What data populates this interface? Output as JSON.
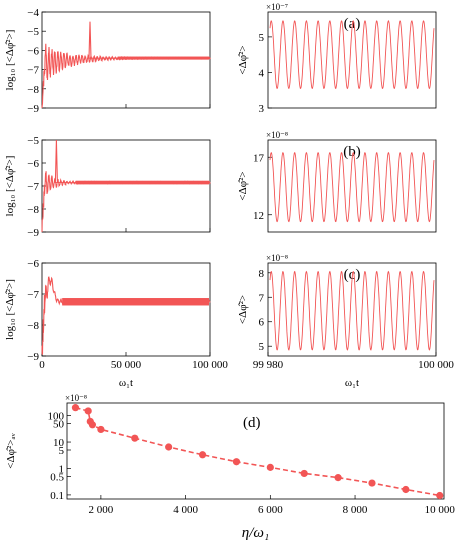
{
  "figure": {
    "panel_labels": [
      "(a)",
      "(b)",
      "(c)",
      "(d)"
    ],
    "left_xlabel": "ω₁t",
    "right_xlabel": "ω₁t",
    "left_ylabel": "log₁₀ [<Δφ̂²>]",
    "right_ylabel": "<Δφ̂²>",
    "d_ylabel": "<Δφ̂²>ₐᵥ",
    "d_xlabel": "η/ω₁",
    "series_color": "#f25555"
  },
  "chart_data": [
    {
      "type": "line",
      "panel": "a-left",
      "xlim": [
        0,
        100000
      ],
      "ylim": [
        -9,
        -4
      ],
      "yticks": [
        -9,
        -8,
        -7,
        -6,
        -5,
        -4
      ],
      "xticks": [
        0,
        50000,
        100000
      ],
      "xtick_labels": [
        "0",
        "50 000",
        "100 000"
      ],
      "ylabel": "log₁₀ [<Δφ̂²>]",
      "description_values": {
        "steady_level": -6.4,
        "initial_min": -9,
        "spike_max": -4.5,
        "spike_x": 28000,
        "ringdown_end_x": 45000
      }
    },
    {
      "type": "line",
      "panel": "a-right",
      "label": "(a)",
      "xlim": [
        99980,
        100000
      ],
      "ylim": [
        3,
        5.7
      ],
      "yticks": [
        3,
        4,
        5
      ],
      "multiplier": "×10⁻⁷",
      "oscillation": {
        "center": 4.5,
        "amplitude": 0.95,
        "cycles": 14
      }
    },
    {
      "type": "line",
      "panel": "b-left",
      "xlim": [
        0,
        100000
      ],
      "ylim": [
        -9,
        -5
      ],
      "yticks": [
        -9,
        -8,
        -7,
        -6,
        -5
      ],
      "xticks": [
        0,
        50000,
        100000
      ],
      "xtick_labels": [
        "0",
        "50 000",
        "100 000"
      ],
      "ylabel": "log₁₀ [<Δφ̂²>]",
      "description_values": {
        "steady_level": -6.85,
        "initial_min": -9,
        "spike_max": -5,
        "spike_x": 8000
      }
    },
    {
      "type": "line",
      "panel": "b-right",
      "label": "(b)",
      "xlim": [
        99980,
        100000
      ],
      "ylim": [
        10.5,
        18.5
      ],
      "yticks": [
        12,
        17
      ],
      "multiplier": "×10⁻⁸",
      "oscillation": {
        "center": 14.4,
        "amplitude": 3.0,
        "cycles": 14
      }
    },
    {
      "type": "line",
      "panel": "c-left",
      "xlim": [
        0,
        100000
      ],
      "ylim": [
        -9,
        -6
      ],
      "yticks": [
        -9,
        -8,
        -7,
        -6
      ],
      "xticks": [
        0,
        50000,
        100000
      ],
      "xtick_labels": [
        "0",
        "50 000",
        "100 000"
      ],
      "xlabel": "ω₁t",
      "ylabel": "log₁₀ [<Δφ̂²>]",
      "description_values": {
        "steady_level": -7.25,
        "initial_min": -9,
        "overshoot_max": -6.55,
        "overshoot_x": 5000
      }
    },
    {
      "type": "line",
      "panel": "c-right",
      "label": "(c)",
      "xlim": [
        99980,
        100000
      ],
      "ylim": [
        4.6,
        8.4
      ],
      "yticks": [
        5,
        6,
        7,
        8
      ],
      "multiplier": "×10⁻⁸",
      "xticks": [
        99980,
        100000
      ],
      "xtick_labels": [
        "99 980",
        "100 000"
      ],
      "xlabel": "ω₁t",
      "oscillation": {
        "center": 6.45,
        "amplitude": 1.6,
        "cycles": 14
      }
    },
    {
      "type": "scatter",
      "panel": "d",
      "label": "(d)",
      "log_y": true,
      "xlim": [
        1200,
        10100
      ],
      "ylim": [
        0.07,
        300
      ],
      "xticks": [
        2000,
        4000,
        6000,
        8000,
        10000
      ],
      "yticks": [
        0.1,
        0.5,
        1,
        5,
        10,
        50,
        100
      ],
      "ytick_labels": [
        "0.1",
        "0.5",
        "1",
        "5",
        "10",
        "50",
        "100"
      ],
      "multiplier": "×10⁻⁸",
      "xlabel": "η/ω₁",
      "ylabel": "<Δφ̂²>ₐᵥ",
      "x": [
        1400,
        1700,
        1750,
        1800,
        2000,
        2800,
        3600,
        4400,
        5200,
        6000,
        6800,
        7600,
        8400,
        9200,
        10000
      ],
      "y": [
        200,
        150,
        60,
        45,
        30,
        14,
        6.5,
        3.3,
        1.8,
        1.1,
        0.65,
        0.45,
        0.28,
        0.16,
        0.095
      ]
    }
  ]
}
